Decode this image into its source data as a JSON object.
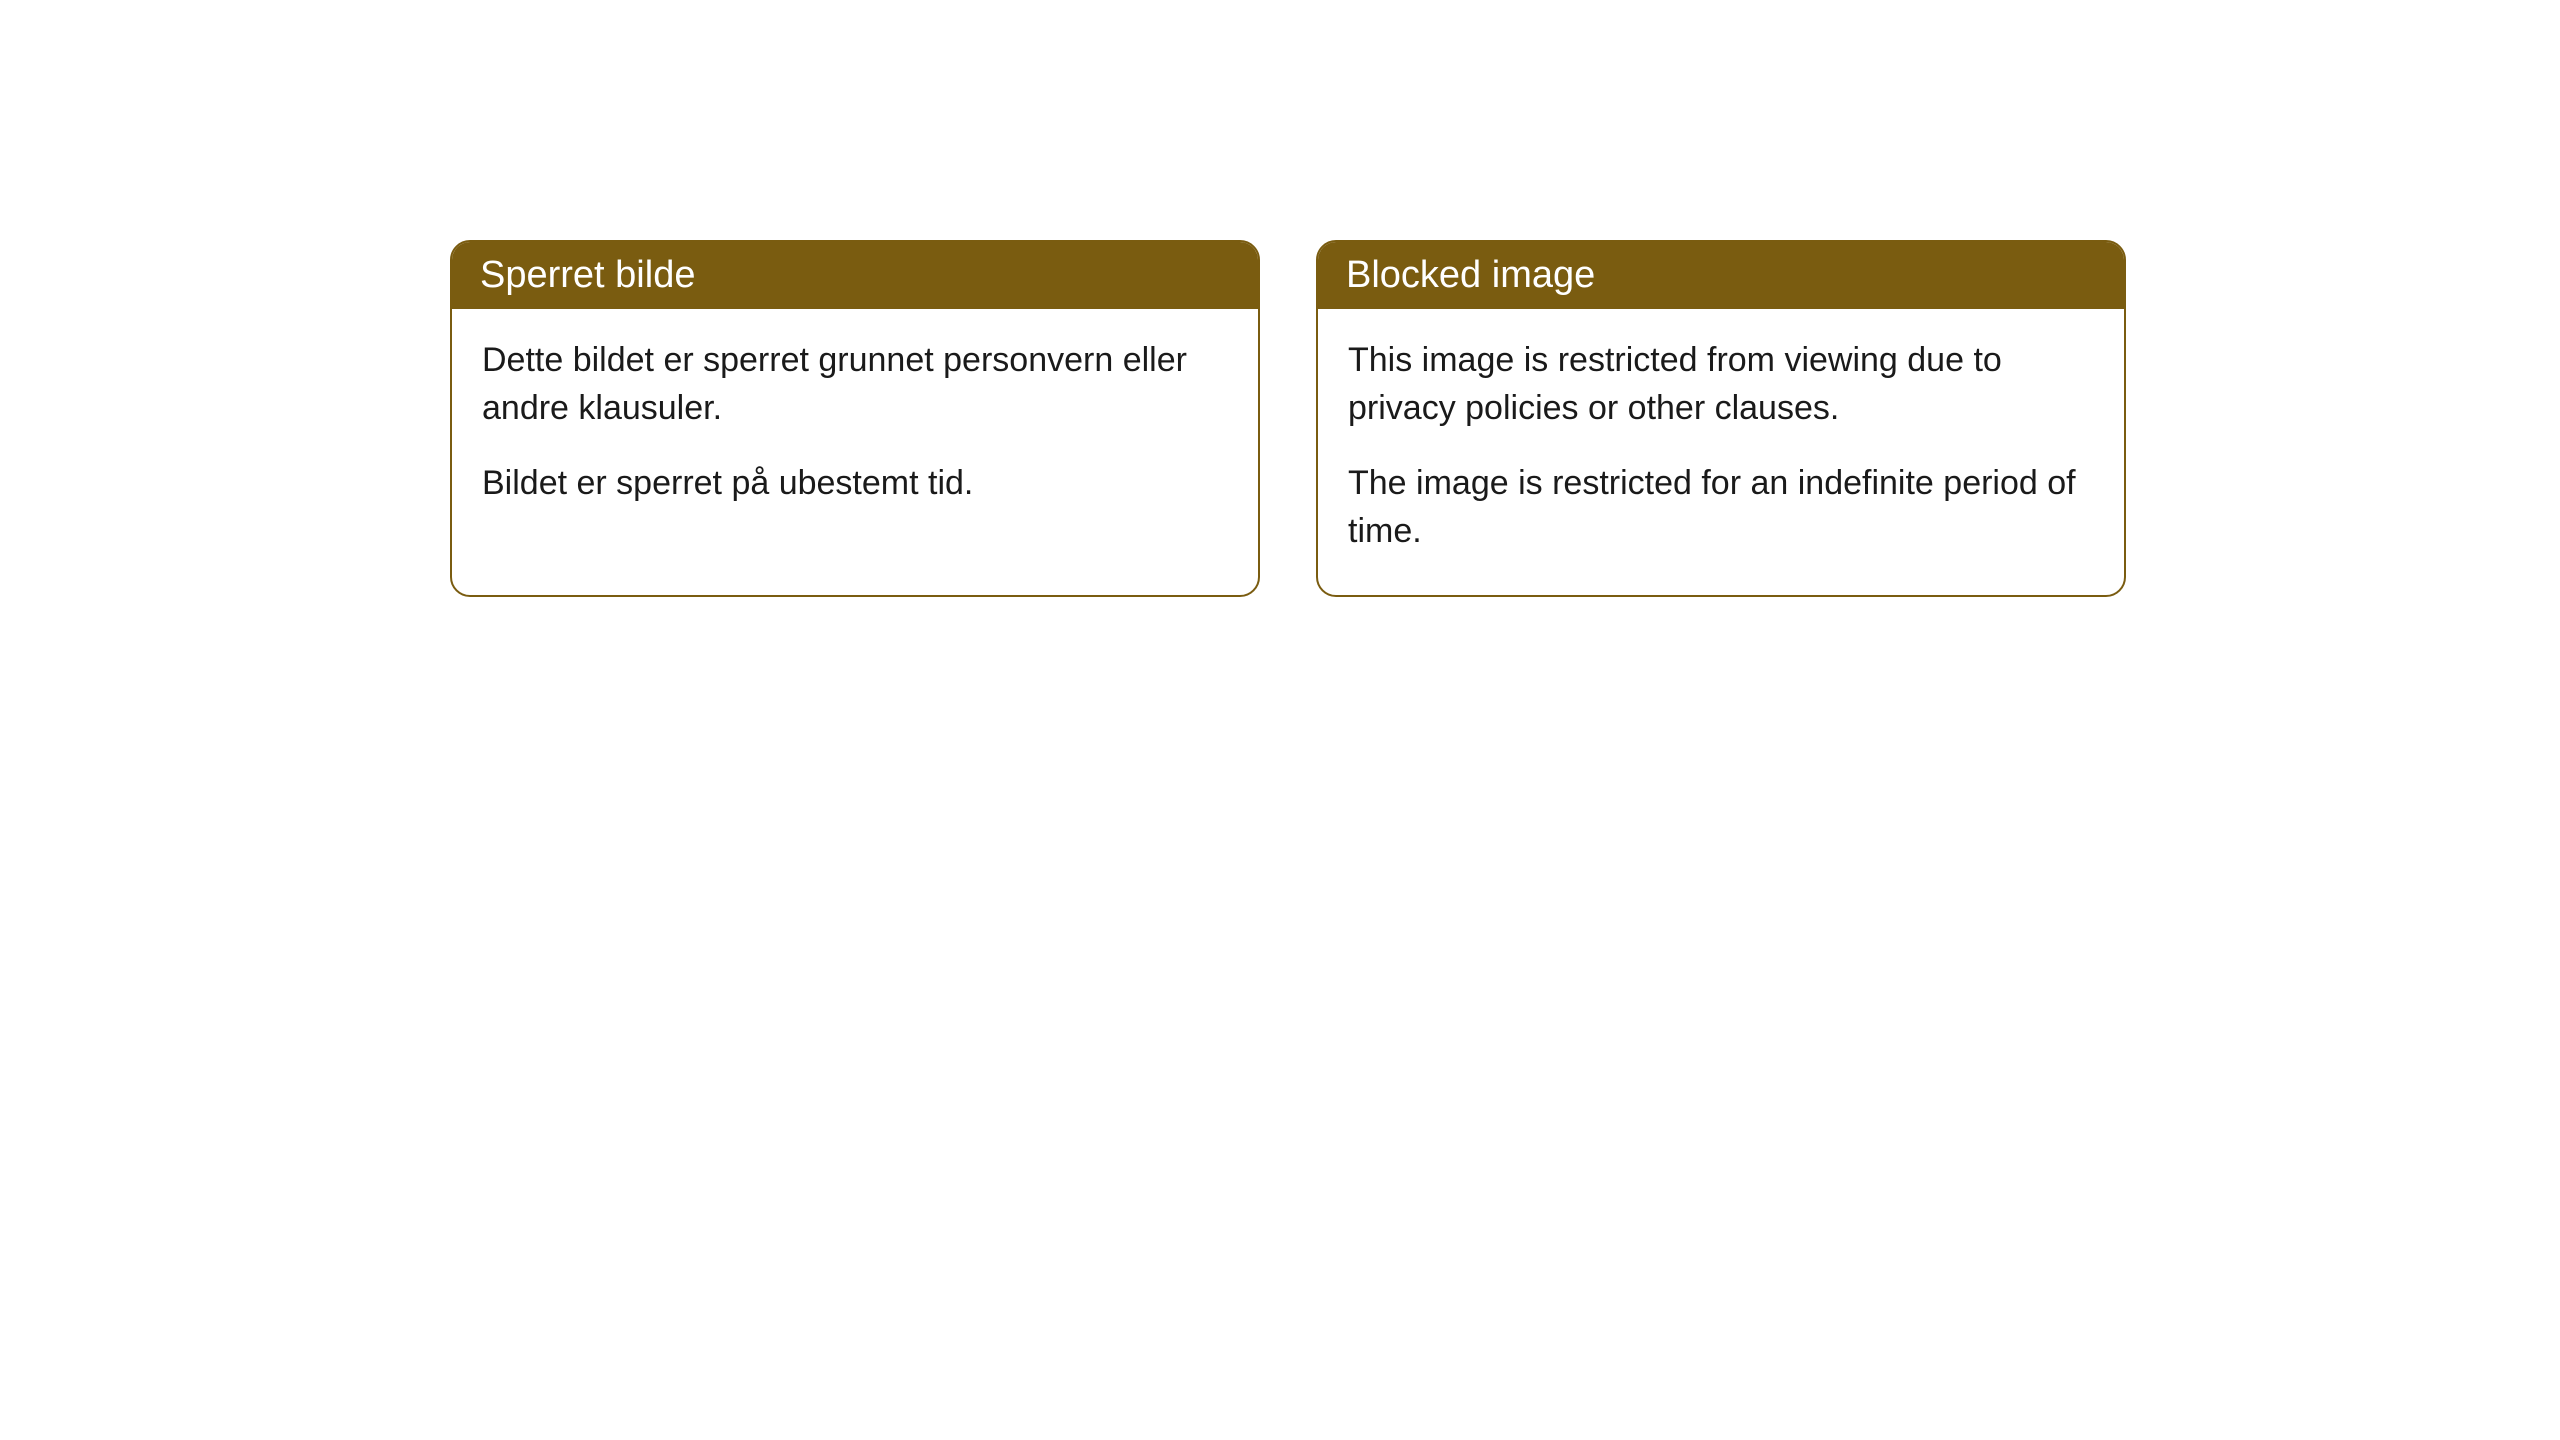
{
  "cards": [
    {
      "title": "Sperret bilde",
      "paragraph1": "Dette bildet er sperret grunnet personvern eller andre klausuler.",
      "paragraph2": "Bildet er sperret på ubestemt tid."
    },
    {
      "title": "Blocked image",
      "paragraph1": "This image is restricted from viewing due to privacy policies or other clauses.",
      "paragraph2": "The image is restricted for an indefinite period of time."
    }
  ],
  "styling": {
    "header_background": "#7a5c10",
    "header_text_color": "#ffffff",
    "border_color": "#7a5c10",
    "body_background": "#ffffff",
    "body_text_color": "#1a1a1a",
    "border_radius": 20,
    "title_fontsize": 38,
    "body_fontsize": 34
  }
}
